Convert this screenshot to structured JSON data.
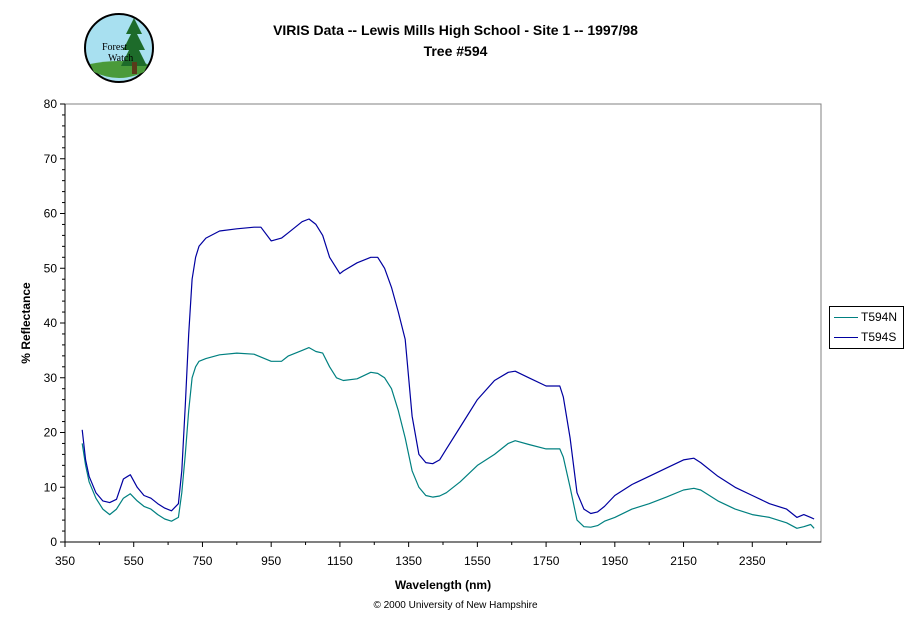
{
  "logo": {
    "text_line1": "Forest",
    "text_line2": "Watch"
  },
  "chart_data": {
    "type": "line",
    "title": "VIRIS Data -- Lewis Mills High School - Site 1 -- 1997/98",
    "subtitle": "Tree #594",
    "xlabel": "Wavelength (nm)",
    "ylabel": "% Reflectance",
    "xlim": [
      350,
      2550
    ],
    "ylim": [
      0,
      80
    ],
    "x_ticks": [
      350,
      550,
      750,
      950,
      1150,
      1350,
      1550,
      1750,
      1950,
      2150,
      2350
    ],
    "y_ticks": [
      0,
      10,
      20,
      30,
      40,
      50,
      60,
      70,
      80
    ],
    "grid": false,
    "legend_position": "right",
    "series": [
      {
        "name": "T594N",
        "color": "#008080",
        "x": [
          400,
          410,
          420,
          440,
          460,
          480,
          500,
          520,
          540,
          560,
          580,
          600,
          620,
          640,
          660,
          680,
          690,
          700,
          710,
          720,
          730,
          740,
          760,
          800,
          850,
          900,
          950,
          980,
          1000,
          1040,
          1060,
          1080,
          1100,
          1120,
          1140,
          1160,
          1200,
          1240,
          1260,
          1280,
          1300,
          1320,
          1340,
          1360,
          1380,
          1400,
          1420,
          1440,
          1460,
          1500,
          1550,
          1600,
          1640,
          1660,
          1700,
          1750,
          1790,
          1800,
          1820,
          1840,
          1860,
          1880,
          1900,
          1920,
          1950,
          2000,
          2050,
          2100,
          2150,
          2180,
          2200,
          2250,
          2300,
          2350,
          2400,
          2450,
          2480,
          2500,
          2520,
          2530
        ],
        "values": [
          18,
          14,
          11,
          8,
          6,
          5,
          6,
          8,
          8.8,
          7.5,
          6.5,
          6,
          5,
          4.2,
          3.8,
          4.5,
          9,
          16,
          24,
          30,
          32,
          33,
          33.5,
          34.2,
          34.5,
          34.3,
          33,
          33,
          34,
          35,
          35.5,
          34.8,
          34.5,
          32,
          30,
          29.5,
          29.8,
          31,
          30.8,
          30,
          28,
          24,
          19,
          13,
          10,
          8.5,
          8.2,
          8.4,
          9,
          11,
          14,
          16,
          18,
          18.5,
          17.8,
          17,
          17,
          15.5,
          10,
          4,
          2.8,
          2.7,
          3,
          3.8,
          4.5,
          6,
          7,
          8.2,
          9.5,
          9.8,
          9.5,
          7.5,
          6,
          5,
          4.5,
          3.5,
          2.5,
          2.8,
          3.2,
          2.5
        ]
      },
      {
        "name": "T594S",
        "color": "#0000a0",
        "x": [
          400,
          410,
          420,
          440,
          460,
          480,
          500,
          520,
          540,
          560,
          580,
          600,
          620,
          640,
          660,
          680,
          690,
          700,
          710,
          720,
          730,
          740,
          760,
          800,
          850,
          900,
          920,
          950,
          980,
          1000,
          1040,
          1060,
          1080,
          1100,
          1120,
          1140,
          1150,
          1160,
          1200,
          1240,
          1260,
          1280,
          1300,
          1320,
          1340,
          1360,
          1380,
          1400,
          1420,
          1440,
          1460,
          1500,
          1550,
          1600,
          1640,
          1660,
          1700,
          1750,
          1790,
          1800,
          1820,
          1840,
          1860,
          1880,
          1900,
          1920,
          1950,
          2000,
          2050,
          2100,
          2150,
          2180,
          2200,
          2250,
          2300,
          2350,
          2400,
          2450,
          2480,
          2500,
          2520,
          2530
        ],
        "values": [
          20.5,
          15,
          12,
          9,
          7.5,
          7.2,
          7.8,
          11.5,
          12.3,
          10,
          8.5,
          8,
          7,
          6.2,
          5.7,
          7,
          13,
          25,
          38,
          48,
          52,
          54,
          55.5,
          56.8,
          57.2,
          57.5,
          57.5,
          55,
          55.5,
          56.5,
          58.5,
          59,
          58,
          56,
          52,
          50,
          49,
          49.5,
          51,
          52,
          52,
          50,
          46.5,
          42,
          37,
          23,
          16,
          14.5,
          14.3,
          15,
          17,
          21,
          26,
          29.5,
          31,
          31.2,
          30,
          28.5,
          28.5,
          26.5,
          19,
          9,
          6,
          5.2,
          5.5,
          6.5,
          8.5,
          10.5,
          12,
          13.5,
          15,
          15.3,
          14.5,
          12,
          10,
          8.5,
          7,
          6,
          4.5,
          5,
          4.5,
          4.2
        ]
      }
    ]
  },
  "footer": "© 2000 University of New Hampshire"
}
